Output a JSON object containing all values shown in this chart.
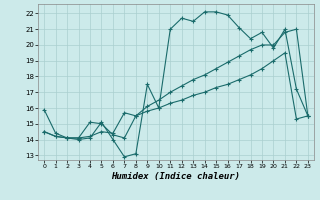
{
  "xlabel": "Humidex (Indice chaleur)",
  "xlim": [
    -0.5,
    23.5
  ],
  "ylim": [
    12.7,
    22.6
  ],
  "yticks": [
    13,
    14,
    15,
    16,
    17,
    18,
    19,
    20,
    21,
    22
  ],
  "xticks": [
    0,
    1,
    2,
    3,
    4,
    5,
    6,
    7,
    8,
    9,
    10,
    11,
    12,
    13,
    14,
    15,
    16,
    17,
    18,
    19,
    20,
    21,
    22,
    23
  ],
  "bg_color": "#cceaea",
  "grid_color": "#aacfcf",
  "line_color": "#1a6b6b",
  "line1_x": [
    0,
    1,
    2,
    3,
    4,
    5,
    6,
    7,
    8,
    9,
    10,
    11,
    12,
    13,
    14,
    15,
    16,
    17,
    18,
    19,
    20,
    21,
    22,
    23
  ],
  "line1_y": [
    15.9,
    14.4,
    14.1,
    14.0,
    14.1,
    15.1,
    14.0,
    12.9,
    13.1,
    17.5,
    16.0,
    21.0,
    21.7,
    21.5,
    22.1,
    22.1,
    21.9,
    21.1,
    20.4,
    20.8,
    19.8,
    21.0,
    17.2,
    15.5
  ],
  "line2_x": [
    0,
    1,
    2,
    3,
    4,
    5,
    6,
    7,
    8,
    9,
    10,
    11,
    12,
    13,
    14,
    15,
    16,
    17,
    18,
    19,
    20,
    21,
    22,
    23
  ],
  "line2_y": [
    14.5,
    14.2,
    14.1,
    14.1,
    14.2,
    14.5,
    14.4,
    15.7,
    15.5,
    15.8,
    16.0,
    16.3,
    16.5,
    16.8,
    17.0,
    17.3,
    17.5,
    17.8,
    18.1,
    18.5,
    19.0,
    19.5,
    15.3,
    15.5
  ],
  "line3_x": [
    0,
    1,
    2,
    3,
    4,
    5,
    6,
    7,
    8,
    9,
    10,
    11,
    12,
    13,
    14,
    15,
    16,
    17,
    18,
    19,
    20,
    21,
    22,
    23
  ],
  "line3_y": [
    14.5,
    14.2,
    14.1,
    14.1,
    15.1,
    15.0,
    14.3,
    14.1,
    15.5,
    16.1,
    16.5,
    17.0,
    17.4,
    17.8,
    18.1,
    18.5,
    18.9,
    19.3,
    19.7,
    20.0,
    20.0,
    20.8,
    21.0,
    15.5
  ]
}
